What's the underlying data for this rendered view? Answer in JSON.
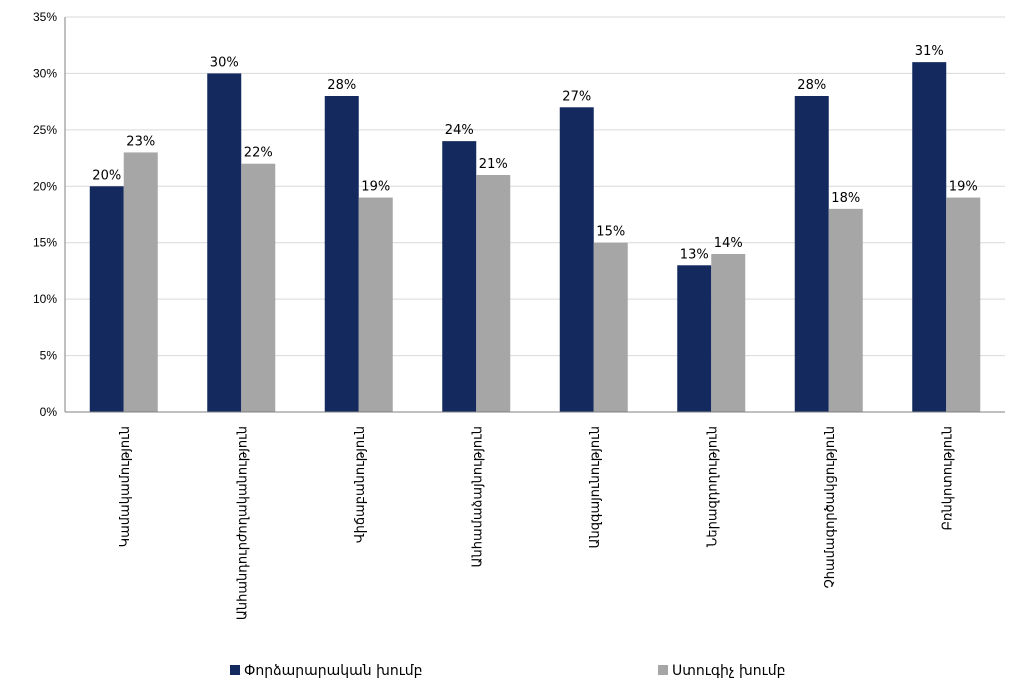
{
  "chart_data": {
    "type": "bar",
    "categories": [
      "Կամակամություն",
      "Անհանդուրժողականություն",
      "Վիճաբանություն",
      "Անհամաձայնություն",
      "Անզգայունություն",
      "Ներազդողություն",
      "Չհամագործակցություն",
      "Բռնկոտություն"
    ],
    "series": [
      {
        "name": "Փորձարարական խումբ",
        "color": "#142a5e",
        "values": [
          20,
          30,
          28,
          24,
          27,
          13,
          28,
          31
        ]
      },
      {
        "name": "Ստուգիչ խումբ",
        "color": "#a6a6a6",
        "values": [
          23,
          22,
          19,
          21,
          15,
          14,
          18,
          19
        ]
      }
    ],
    "data_labels": [
      [
        "20%",
        "30%",
        "28%",
        "24%",
        "27%",
        "13%",
        "28%",
        "31%"
      ],
      [
        "23%",
        "22%",
        "19%",
        "21%",
        "15%",
        "14%",
        "18%",
        "19%"
      ]
    ],
    "yticks": [
      "0%",
      "5%",
      "10%",
      "15%",
      "20%",
      "25%",
      "30%",
      "35%"
    ],
    "ylim": [
      0,
      35
    ],
    "grid": true,
    "legend_position": "bottom"
  }
}
